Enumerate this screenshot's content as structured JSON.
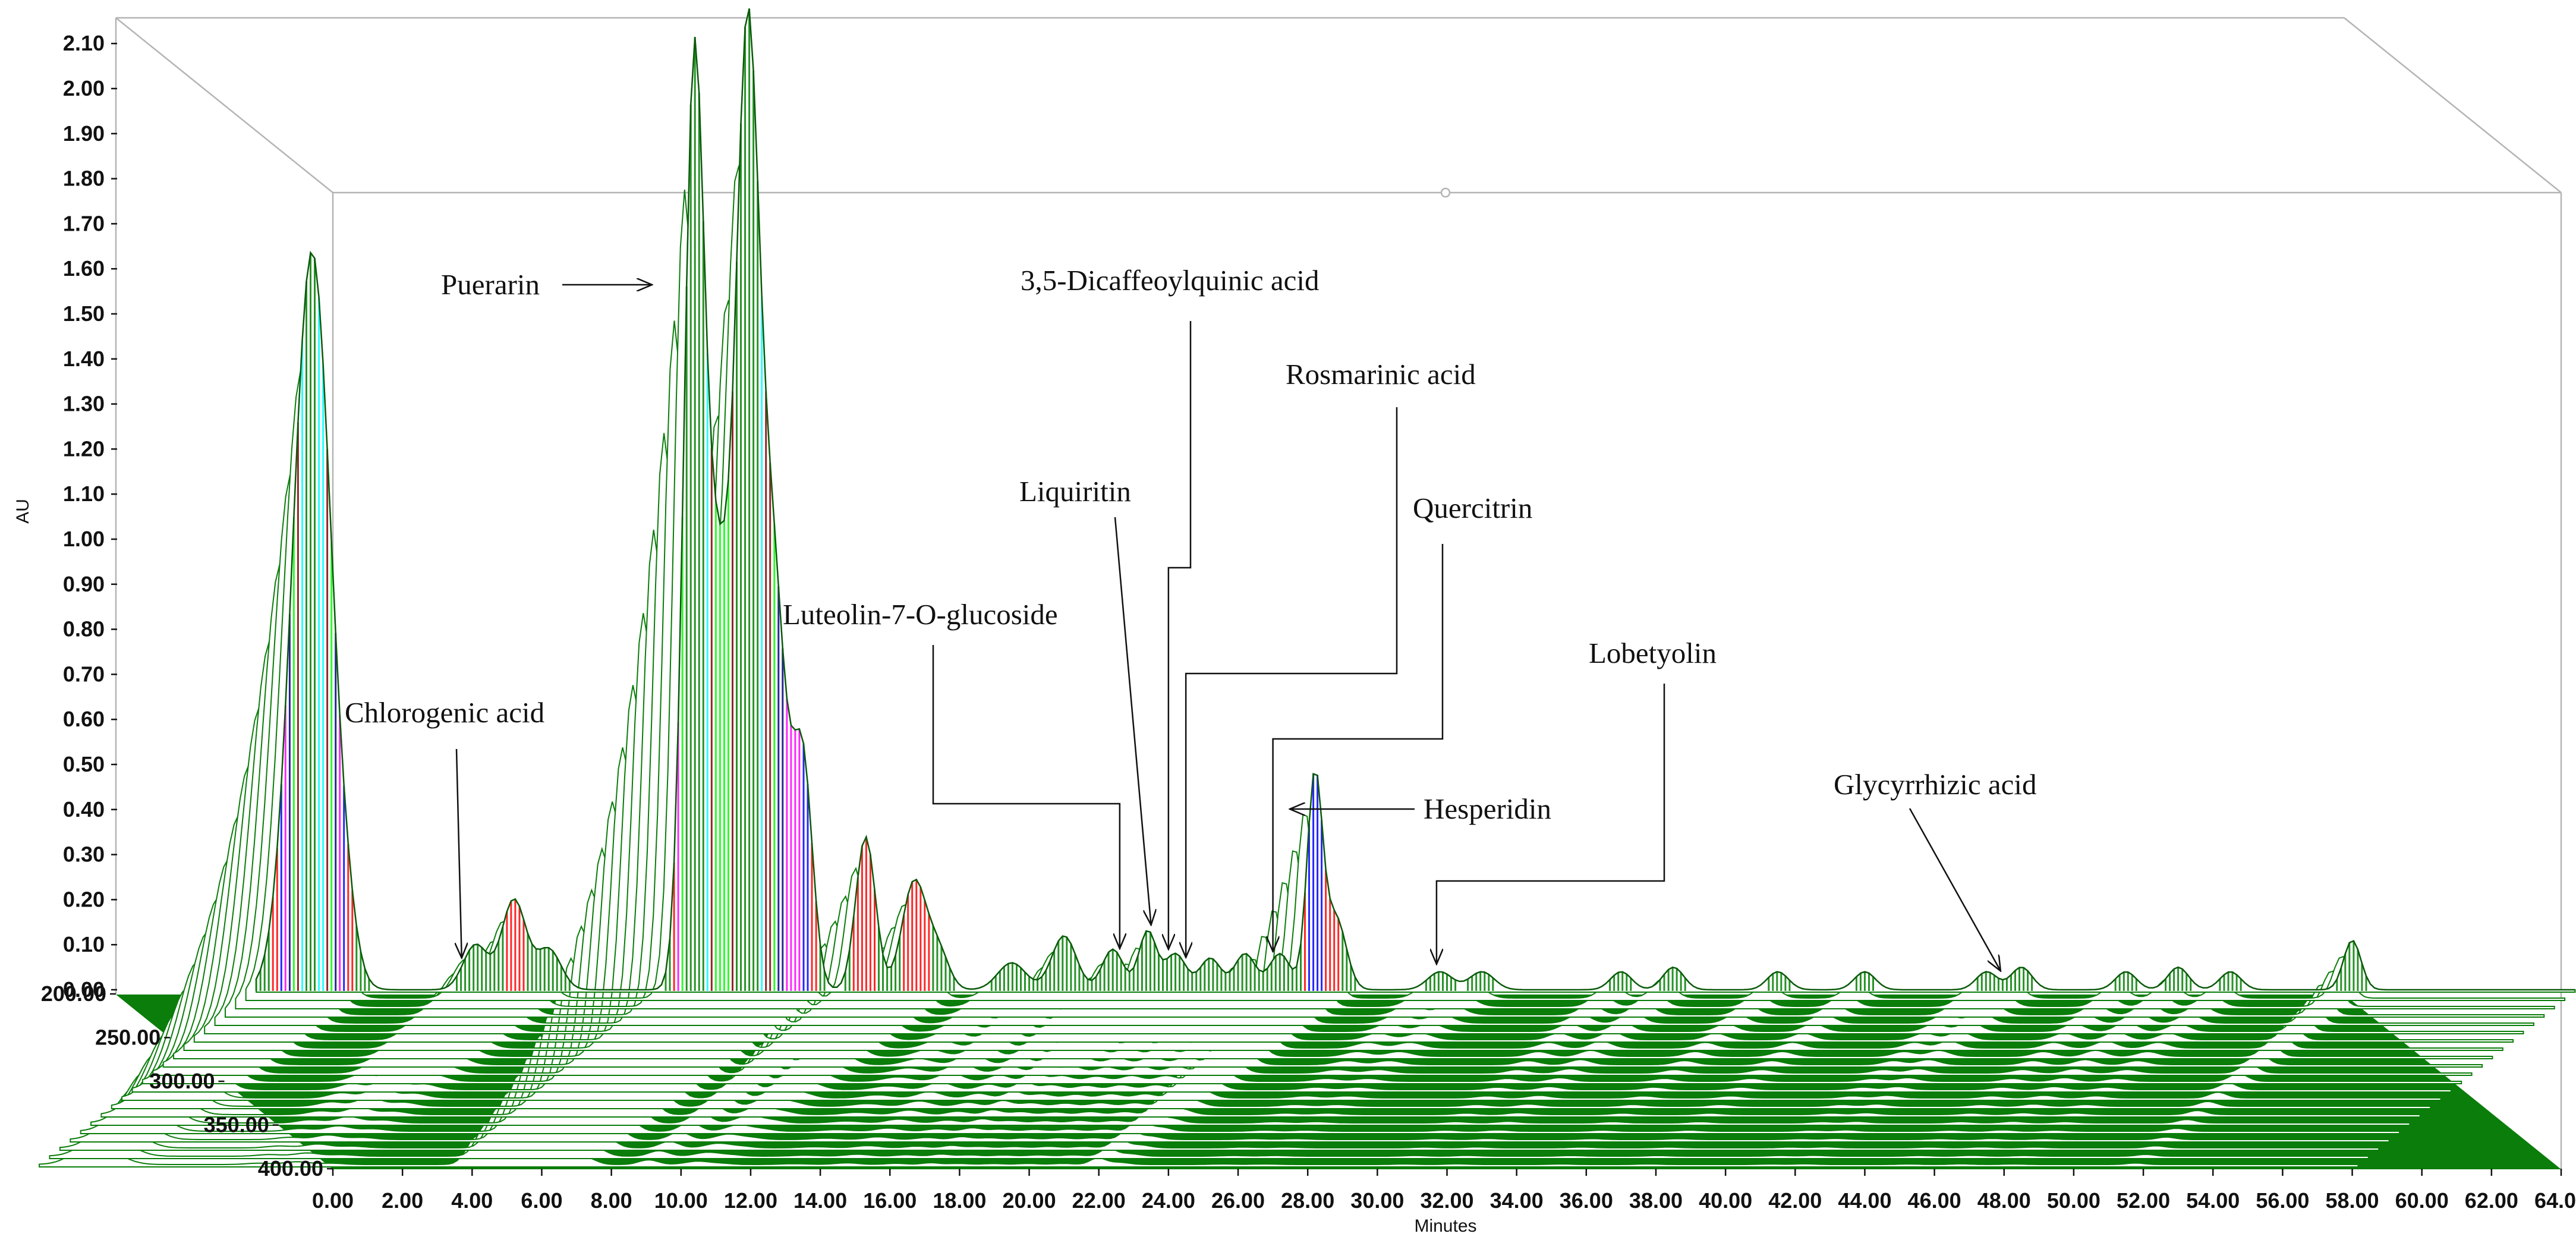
{
  "chart_data": {
    "type": "area",
    "ylabel": "AU",
    "xlabel": "Minutes",
    "xlim": [
      0,
      64
    ],
    "ylim": [
      0,
      2.1
    ],
    "zlim": [
      200,
      400
    ],
    "y_ticks": [
      "0.00",
      "0.10",
      "0.20",
      "0.30",
      "0.40",
      "0.50",
      "0.60",
      "0.70",
      "0.80",
      "0.90",
      "1.00",
      "1.10",
      "1.20",
      "1.30",
      "1.40",
      "1.50",
      "1.60",
      "1.70",
      "1.80",
      "1.90",
      "2.00",
      "2.10"
    ],
    "x_ticks": [
      "0.00",
      "2.00",
      "4.00",
      "6.00",
      "8.00",
      "10.00",
      "12.00",
      "14.00",
      "16.00",
      "18.00",
      "20.00",
      "22.00",
      "24.00",
      "26.00",
      "28.00",
      "30.00",
      "32.00",
      "34.00",
      "36.00",
      "38.00",
      "40.00",
      "42.00",
      "44.00",
      "46.00",
      "48.00",
      "50.00",
      "52.00",
      "54.00",
      "56.00",
      "58.00",
      "60.00",
      "62.00",
      "64.00"
    ],
    "z_ticks": [
      "200.00",
      "250.00",
      "300.00",
      "350.00",
      "400.00"
    ],
    "color_bands": [
      {
        "from": 0.0,
        "to": 0.15,
        "color": "#007f00"
      },
      {
        "from": 0.15,
        "to": 0.35,
        "color": "#ff0000"
      },
      {
        "from": 0.35,
        "to": 0.55,
        "color": "#0000ff"
      },
      {
        "from": 0.55,
        "to": 0.75,
        "color": "#ff00ff"
      },
      {
        "from": 0.75,
        "to": 0.95,
        "color": "#00007f"
      },
      {
        "from": 0.95,
        "to": 1.15,
        "color": "#00ff00"
      },
      {
        "from": 1.15,
        "to": 1.35,
        "color": "#7f0000"
      },
      {
        "from": 1.35,
        "to": 1.55,
        "color": "#00ffff"
      },
      {
        "from": 1.55,
        "to": 2.2,
        "color": "#007f00"
      }
    ],
    "peaks": [
      {
        "t": -0.6,
        "h": 1.64,
        "w": 0.55
      },
      {
        "t": 0.4,
        "h": 0.05,
        "w": 0.3
      },
      {
        "t": 4.1,
        "h": 0.1,
        "w": 0.35
      },
      {
        "t": 5.2,
        "h": 0.2,
        "w": 0.35
      },
      {
        "t": 6.2,
        "h": 0.09,
        "w": 0.35
      },
      {
        "t": 10.35,
        "h": 1.76,
        "w": 0.28
      },
      {
        "t": 11.0,
        "h": 0.93,
        "w": 0.45
      },
      {
        "t": 11.9,
        "h": 1.85,
        "w": 0.32
      },
      {
        "t": 12.6,
        "h": 0.95,
        "w": 0.4
      },
      {
        "t": 13.5,
        "h": 0.48,
        "w": 0.28
      },
      {
        "t": 15.3,
        "h": 0.34,
        "w": 0.28
      },
      {
        "t": 16.7,
        "h": 0.24,
        "w": 0.35
      },
      {
        "t": 17.4,
        "h": 0.08,
        "w": 0.3
      },
      {
        "t": 19.5,
        "h": 0.06,
        "w": 0.4
      },
      {
        "t": 21.0,
        "h": 0.12,
        "w": 0.35
      },
      {
        "t": 22.4,
        "h": 0.09,
        "w": 0.3
      },
      {
        "t": 23.4,
        "h": 0.13,
        "w": 0.25
      },
      {
        "t": 24.2,
        "h": 0.08,
        "w": 0.3
      },
      {
        "t": 25.2,
        "h": 0.07,
        "w": 0.3
      },
      {
        "t": 26.2,
        "h": 0.08,
        "w": 0.3
      },
      {
        "t": 27.2,
        "h": 0.08,
        "w": 0.3
      },
      {
        "t": 28.2,
        "h": 0.47,
        "w": 0.22
      },
      {
        "t": 28.8,
        "h": 0.16,
        "w": 0.3
      },
      {
        "t": 31.8,
        "h": 0.04,
        "w": 0.35
      },
      {
        "t": 33.0,
        "h": 0.04,
        "w": 0.35
      },
      {
        "t": 37.0,
        "h": 0.04,
        "w": 0.3
      },
      {
        "t": 38.5,
        "h": 0.05,
        "w": 0.3
      },
      {
        "t": 41.5,
        "h": 0.04,
        "w": 0.3
      },
      {
        "t": 44.0,
        "h": 0.04,
        "w": 0.3
      },
      {
        "t": 47.5,
        "h": 0.04,
        "w": 0.3
      },
      {
        "t": 48.5,
        "h": 0.05,
        "w": 0.3
      },
      {
        "t": 51.5,
        "h": 0.04,
        "w": 0.3
      },
      {
        "t": 53.0,
        "h": 0.05,
        "w": 0.3
      },
      {
        "t": 54.5,
        "h": 0.04,
        "w": 0.3
      },
      {
        "t": 58.0,
        "h": 0.11,
        "w": 0.25
      }
    ],
    "annotations": [
      {
        "text": "Puerarin",
        "t": 10.2
      },
      {
        "text": "Chlorogenic acid",
        "t": 3.7
      },
      {
        "text": "Luteolin-7-O-glucoside",
        "t": 22.6
      },
      {
        "text": "Liquiritin",
        "t": 23.5
      },
      {
        "text": "3,5-Dicaffeoylquinic acid",
        "t": 24.0
      },
      {
        "text": "Rosmarinic acid",
        "t": 24.5
      },
      {
        "text": "Quercitrin",
        "t": 27.0
      },
      {
        "text": "Hesperidin",
        "t": 28.2
      },
      {
        "text": "Lobetyolin",
        "t": 31.7
      },
      {
        "text": "Glycyrrhizic acid",
        "t": 47.9
      }
    ]
  }
}
